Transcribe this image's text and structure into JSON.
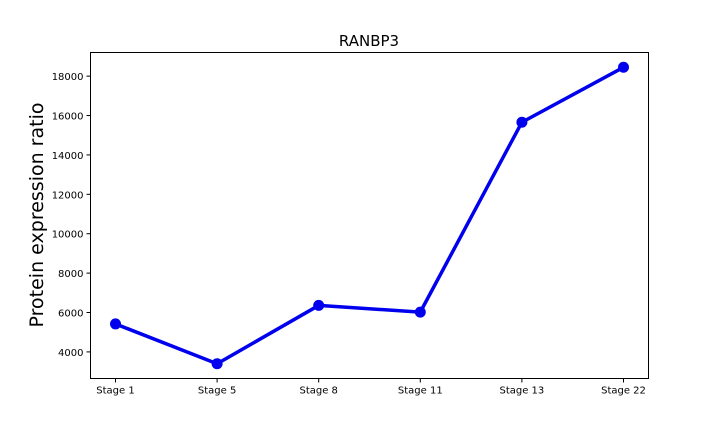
{
  "chart_data": {
    "type": "line",
    "title": "RANBP3",
    "xlabel": "",
    "ylabel": "Protein expression ratio",
    "categories": [
      "Stage 1",
      "Stage 5",
      "Stage 8",
      "Stage 11",
      "Stage 13",
      "Stage 22"
    ],
    "series": [
      {
        "values": [
          5420,
          3400,
          6360,
          6020,
          15660,
          18450
        ],
        "color": "#0000ee"
      }
    ],
    "ylim": [
      2650,
      19200
    ],
    "yticks": [
      4000,
      6000,
      8000,
      10000,
      12000,
      14000,
      16000,
      18000
    ],
    "grid": false,
    "legend": "none",
    "marker": "circle"
  }
}
